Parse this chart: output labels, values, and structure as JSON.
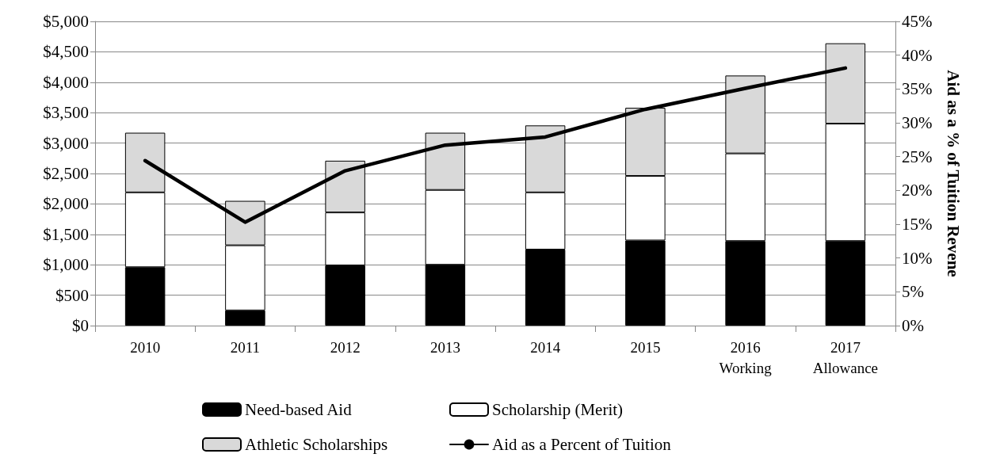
{
  "chart_data": {
    "type": "bar",
    "stacked": true,
    "categories": [
      "2010",
      "2011",
      "2012",
      "2013",
      "2014",
      "2015",
      "2016\nWorking",
      "2017\nAllowance"
    ],
    "series": [
      {
        "name": "Need-based Aid",
        "color": "#000000",
        "values": [
          960,
          250,
          990,
          1000,
          1250,
          1400,
          1390,
          1390
        ]
      },
      {
        "name": "Scholarship (Merit)",
        "color": "#ffffff",
        "values": [
          1230,
          1070,
          870,
          1230,
          940,
          1060,
          1440,
          1930
        ]
      },
      {
        "name": "Athletic Scholarships",
        "color": "#d9d9d9",
        "values": [
          980,
          730,
          850,
          940,
          1100,
          1120,
          1280,
          1320
        ]
      },
      {
        "name": "Aid as a Percent of Tuition",
        "type": "line",
        "axis": "y2",
        "color": "#000000",
        "marker": "none",
        "line_style": "solid",
        "values": [
          24.4,
          15.3,
          22.9,
          26.7,
          27.9,
          32.0,
          35.1,
          38.1
        ]
      }
    ],
    "y2label": "Aid as a % of Tuition Revene",
    "ylim": [
      0,
      5000
    ],
    "yticks": [
      {
        "value": 0,
        "label": "$0"
      },
      {
        "value": 500,
        "label": "$500"
      },
      {
        "value": 1000,
        "label": "$1,000"
      },
      {
        "value": 1500,
        "label": "$1,500"
      },
      {
        "value": 2000,
        "label": "$2,000"
      },
      {
        "value": 2500,
        "label": "$2,500"
      },
      {
        "value": 3000,
        "label": "$3,000"
      },
      {
        "value": 3500,
        "label": "$3,500"
      },
      {
        "value": 4000,
        "label": "$4,000"
      },
      {
        "value": 4500,
        "label": "$4,500"
      },
      {
        "value": 5000,
        "label": "$5,000"
      }
    ],
    "y2lim": [
      0,
      45
    ],
    "y2ticks": [
      {
        "value": 0,
        "label": "0%"
      },
      {
        "value": 5,
        "label": "5%"
      },
      {
        "value": 10,
        "label": "10%"
      },
      {
        "value": 15,
        "label": "15%"
      },
      {
        "value": 20,
        "label": "20%"
      },
      {
        "value": 25,
        "label": "25%"
      },
      {
        "value": 30,
        "label": "30%"
      },
      {
        "value": 35,
        "label": "35%"
      },
      {
        "value": 40,
        "label": "40%"
      },
      {
        "value": 45,
        "label": "45%"
      }
    ],
    "grid": "y",
    "legend": "bottom"
  }
}
